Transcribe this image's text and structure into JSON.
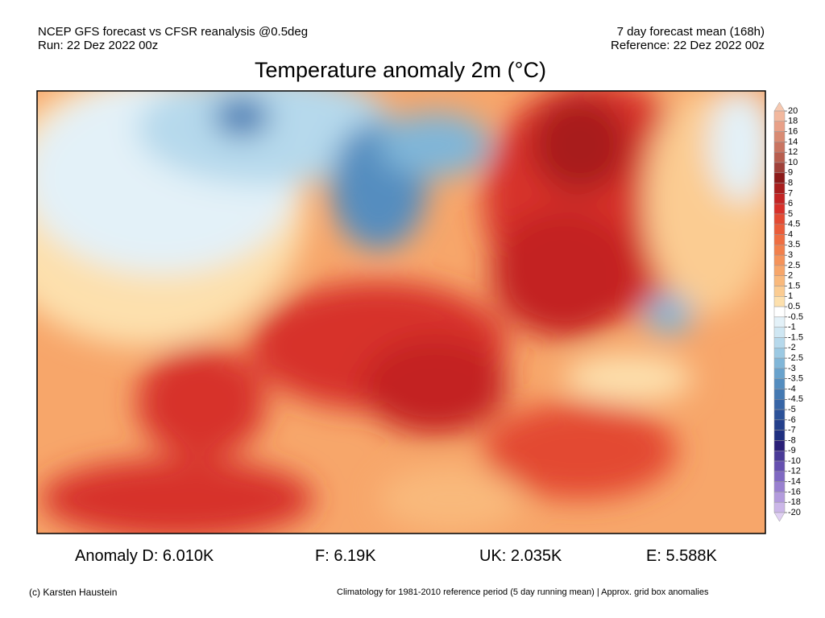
{
  "header": {
    "left": [
      "NCEP GFS forecast vs CFSR reanalysis @0.5deg",
      "Run: 22 Dez 2022 00z"
    ],
    "right": [
      "7 day forecast mean (168h)",
      "Reference: 22 Dez 2022 00z"
    ],
    "title": "Temperature anomaly 2m (°C)"
  },
  "legend": {
    "levels": [
      20,
      18,
      16,
      14,
      12,
      10,
      9,
      8,
      7,
      6,
      5,
      4.5,
      4,
      3.5,
      3,
      2.5,
      2,
      1.5,
      1,
      0.5,
      -0.5,
      -1,
      -1.5,
      -2,
      -2.5,
      -3,
      -3.5,
      -4,
      -4.5,
      -5,
      -6,
      -7,
      -8,
      -9,
      -10,
      -12,
      -14,
      -16,
      -18,
      -20
    ],
    "colors": [
      "#f6c8b0",
      "#f2b89e",
      "#e8a088",
      "#d98b73",
      "#c97461",
      "#b85e4f",
      "#a0413a",
      "#8c1a1a",
      "#a81e1e",
      "#c32424",
      "#d7302a",
      "#e34a33",
      "#ea5c3a",
      "#ef6e42",
      "#f2804c",
      "#f5935a",
      "#f7a66a",
      "#f9b97c",
      "#fbcc92",
      "#fde0ad",
      "#ffffff",
      "#e3f1f8",
      "#cfe7f3",
      "#b6d9ec",
      "#9bc9e3",
      "#80b6d8",
      "#68a2cc",
      "#548dbf",
      "#4479b2",
      "#3765a6",
      "#2c5299",
      "#24408c",
      "#1f2f80",
      "#2a1f78",
      "#4a3a98",
      "#6650b0",
      "#7f68c2",
      "#9980d0",
      "#b39bdd",
      "#cbb6e8",
      "#e0d0f3"
    ]
  },
  "stats": [
    "Anomaly D: 6.010K",
    "F: 6.19K",
    "UK: 2.035K",
    "E: 5.588K"
  ],
  "footer": {
    "left": "(c) Karsten Haustein",
    "right": "Climatology for 1981-2010 reference period (5 day running mean) | Approx. grid box anomalies"
  }
}
